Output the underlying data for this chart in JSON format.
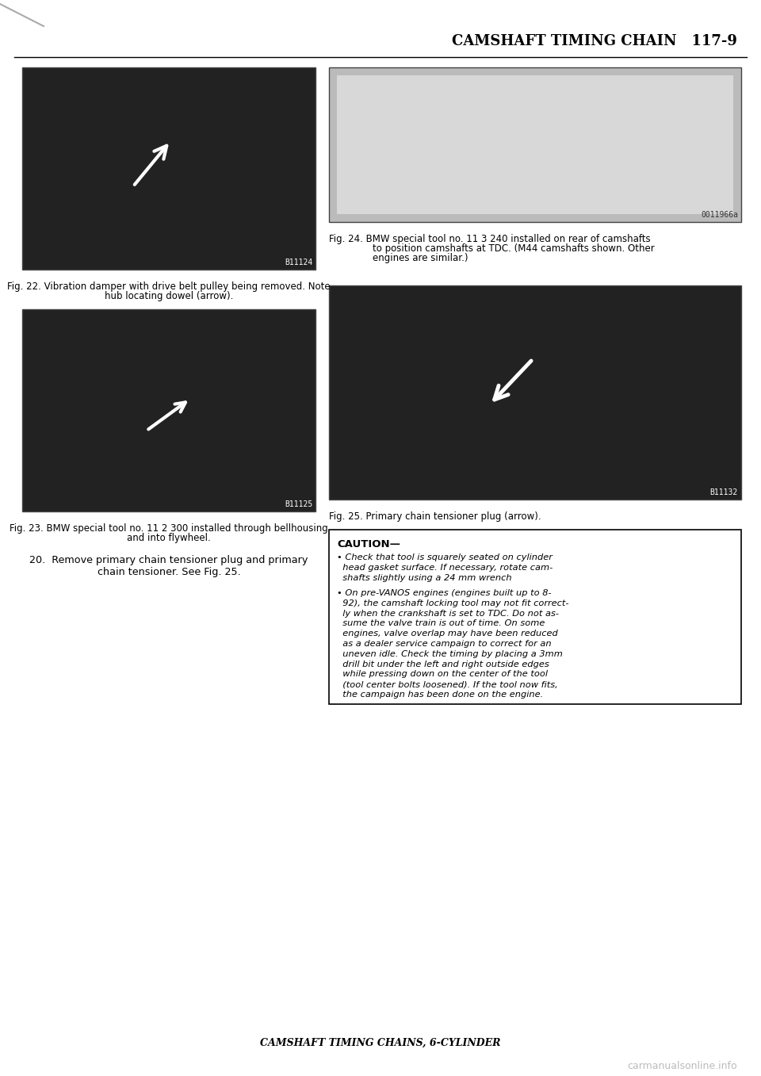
{
  "page_title": "CAMSHAFT TIMING CHAIN   117-9",
  "footer_title": "CAMSHAFT TIMING CHAINS, 6-CYLINDER",
  "watermark": "carmanualsonline.info",
  "bg_color": "#ffffff",
  "fig22_caption_line1": "Fig. 22. Vibration damper with drive belt pulley being removed. Note",
  "fig22_caption_line2": "hub locating dowel (arrow).",
  "fig23_caption_line1": "Fig. 23. BMW special tool no. 11 2 300 installed through bellhousing",
  "fig23_caption_line2": "and into flywheel.",
  "fig24_caption_line1": "Fig. 24. BMW special tool no. 11 3 240 installed on rear of camshafts",
  "fig24_caption_line2": "to position camshafts at TDC. (M44 camshafts shown. Other",
  "fig24_caption_line3": "engines are similar.)",
  "fig25_caption": "Fig. 25. Primary chain tensioner plug (arrow).",
  "fig25_caption_bold": "arrow",
  "step20_line1": "20.  Remove primary chain tensioner plug and primary",
  "step20_line2": "chain tensioner. See Fig. 25.",
  "caution_title": "CAUTION—",
  "b1_lines": [
    "• Check that tool is squarely seated on cylinder",
    "  head gasket surface. If necessary, rotate cam-",
    "  shafts slightly using a 24 mm wrench"
  ],
  "b2_lines": [
    "• On pre-VANOS engines (engines built up to 8-",
    "  92), the camshaft locking tool may not fit correct-",
    "  ly when the crankshaft is set to TDC. Do not as-",
    "  sume the valve train is out of time. On some",
    "  engines, valve overlap may have been reduced",
    "  as a dealer service campaign to correct for an",
    "  uneven idle. Check the timing by placing a 3mm",
    "  drill bit under the left and right outside edges",
    "  while pressing down on the center of the tool",
    "  (tool center bolts loosened). If the tool now fits,",
    "  the campaign has been done on the engine."
  ],
  "fig22_id": "B11124",
  "fig23_id": "B11125",
  "fig25_id": "B11132",
  "fig24_id": "0011966a"
}
